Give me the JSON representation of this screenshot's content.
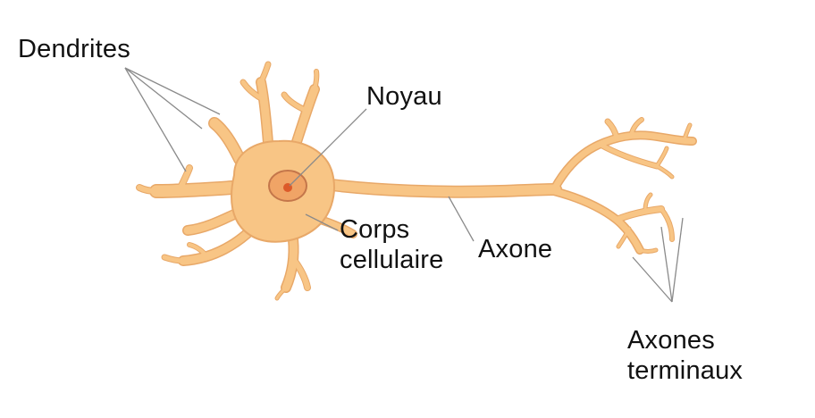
{
  "labels": {
    "dendrites": "Dendrites",
    "noyau": "Noyau",
    "corps_line1": "Corps",
    "corps_line2": "cellulaire",
    "axone": "Axone",
    "terminaux_line1": "Axones",
    "terminaux_line2": "terminaux"
  },
  "colors": {
    "cell_fill": "#f8c585",
    "cell_outline": "#e8a868",
    "nucleus_fill": "#f0a466",
    "nucleus_outline": "#c4764a",
    "nucleolus": "#dc5a2a",
    "leader_line": "#8a8a8a",
    "text": "#111111"
  }
}
